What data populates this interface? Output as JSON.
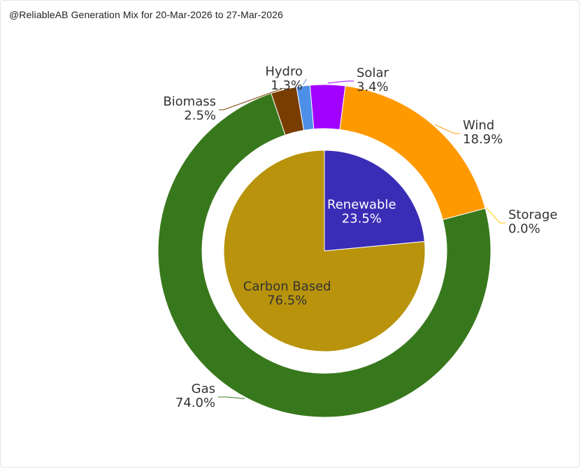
{
  "title": "@ReliableAB Generation Mix for 20-Mar-2026 to 27-Mar-2026",
  "chart_data": {
    "type": "pie",
    "title": "@ReliableAB Generation Mix for 20-Mar-2026 to 27-Mar-2026",
    "outer": [
      {
        "label": "Solar",
        "value": 3.4,
        "display": "3.4%",
        "color": "#a100ff"
      },
      {
        "label": "Wind",
        "value": 18.9,
        "display": "18.9%",
        "color": "#ff9900"
      },
      {
        "label": "Storage",
        "value": 0.0,
        "display": "0.0%",
        "color": "#ffcc00"
      },
      {
        "label": "Gas",
        "value": 74.0,
        "display": "74.0%",
        "color": "#38781d"
      },
      {
        "label": "Biomass",
        "value": 2.5,
        "display": "2.5%",
        "color": "#7a3d00"
      },
      {
        "label": "Hydro",
        "value": 1.3,
        "display": "1.3%",
        "color": "#4d8fe8"
      }
    ],
    "inner": [
      {
        "label": "Renewable",
        "value": 23.5,
        "display": "23.5%",
        "color": "#3a2db5",
        "text_color": "#ffffff"
      },
      {
        "label": "Carbon Based",
        "value": 76.5,
        "display": "76.5%",
        "color": "#b8930b",
        "text_color": "#333333"
      }
    ]
  }
}
